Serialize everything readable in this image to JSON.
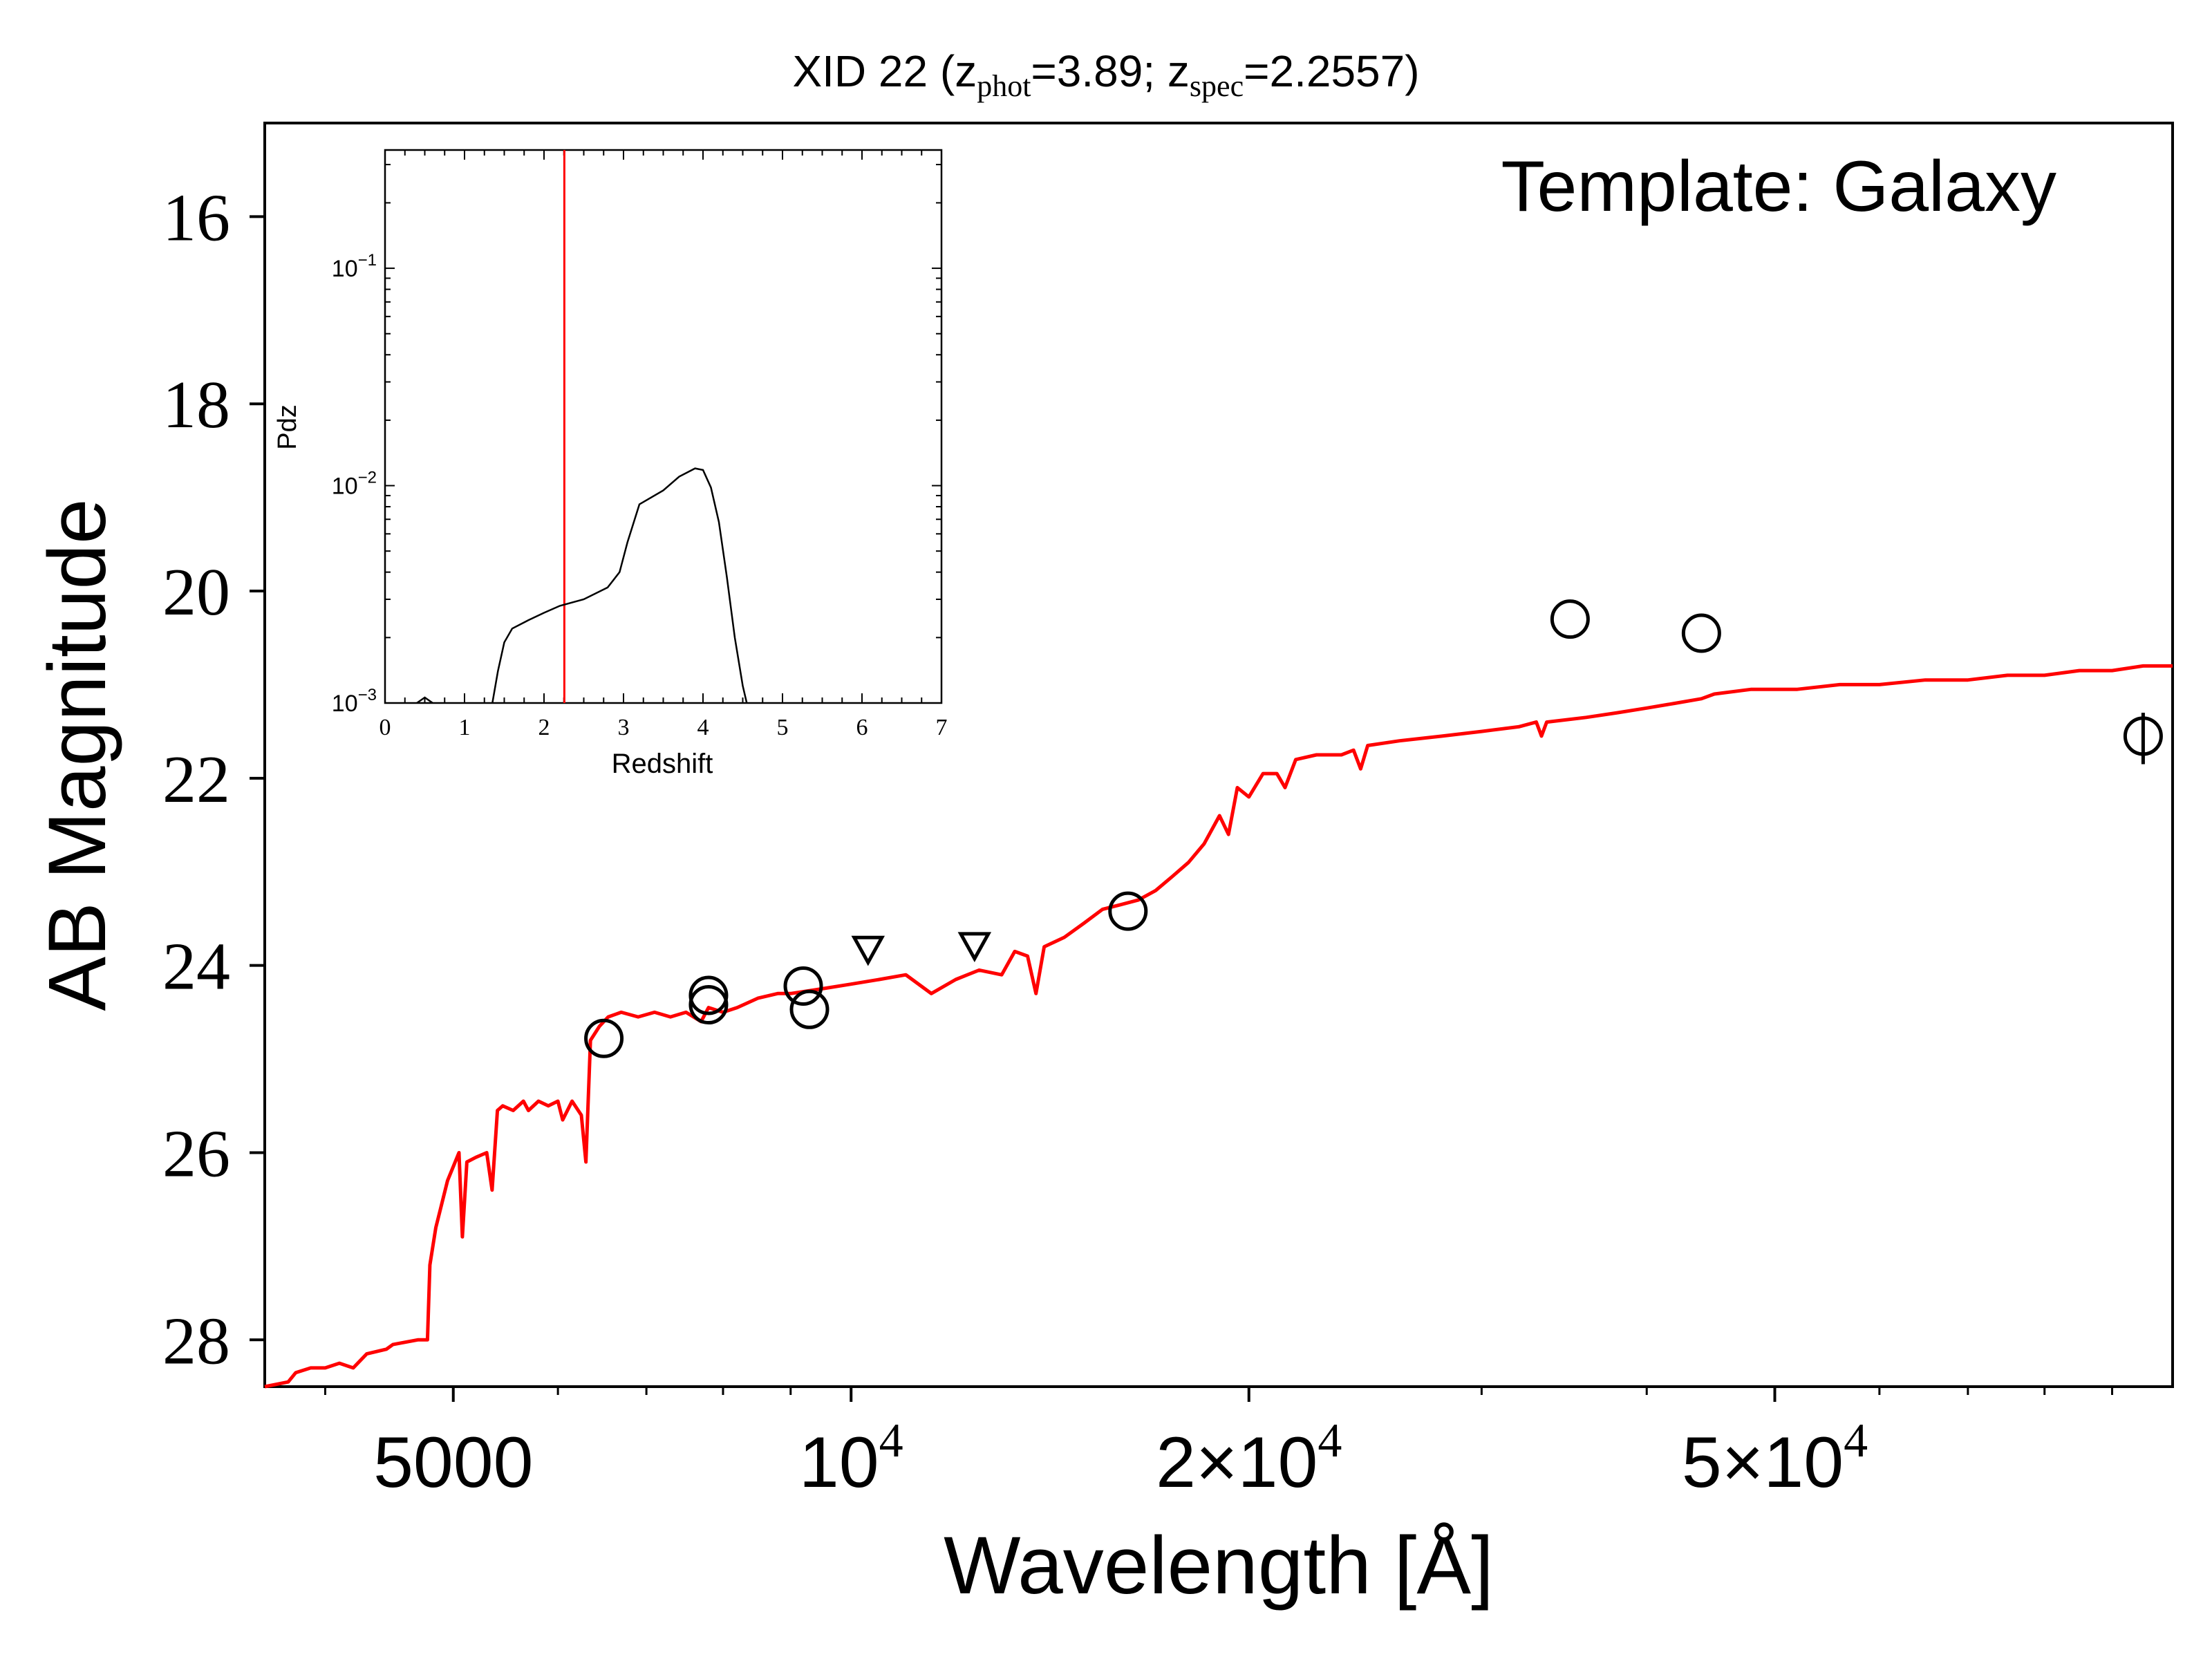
{
  "chart_data": [
    {
      "type": "line",
      "title": {
        "prefix": "XID 22 (z",
        "sub1": "phot",
        "mid": "=3.89; z",
        "sub2": "spec",
        "suffix": "=2.2557)"
      },
      "annotation": "Template: Galaxy",
      "xlabel": "Wavelength [Å]",
      "ylabel": "AB Magnitude",
      "x_scale": "log",
      "y_inverted": true,
      "xlim": [
        3600,
        100000
      ],
      "ylim": [
        28.5,
        15.0
      ],
      "xticks": [
        {
          "value": 5000,
          "label": "5000"
        },
        {
          "value": 10000,
          "label": "10",
          "sup": "4"
        },
        {
          "value": 20000,
          "label": "2×10",
          "sup": "4"
        },
        {
          "value": 50000,
          "label": "5×10",
          "sup": "4"
        }
      ],
      "yticks": [
        {
          "value": 16,
          "label": "16"
        },
        {
          "value": 18,
          "label": "18"
        },
        {
          "value": 20,
          "label": "20"
        },
        {
          "value": 22,
          "label": "22"
        },
        {
          "value": 24,
          "label": "24"
        },
        {
          "value": 26,
          "label": "26"
        },
        {
          "value": 28,
          "label": "28"
        }
      ],
      "series": [
        {
          "kind": "template-spectrum",
          "color": "#ff0000",
          "points": [
            [
              3600,
              28.5
            ],
            [
              3750,
              28.45
            ],
            [
              3800,
              28.35
            ],
            [
              3900,
              28.3
            ],
            [
              4000,
              28.3
            ],
            [
              4100,
              28.25
            ],
            [
              4200,
              28.3
            ],
            [
              4300,
              28.15
            ],
            [
              4450,
              28.1
            ],
            [
              4500,
              28.05
            ],
            [
              4700,
              28.0
            ],
            [
              4780,
              28.0
            ],
            [
              4800,
              27.2
            ],
            [
              4850,
              26.8
            ],
            [
              4950,
              26.3
            ],
            [
              5050,
              26.0
            ],
            [
              5080,
              26.9
            ],
            [
              5120,
              26.1
            ],
            [
              5200,
              26.05
            ],
            [
              5300,
              26.0
            ],
            [
              5350,
              26.4
            ],
            [
              5400,
              25.55
            ],
            [
              5450,
              25.5
            ],
            [
              5550,
              25.55
            ],
            [
              5650,
              25.45
            ],
            [
              5700,
              25.55
            ],
            [
              5800,
              25.45
            ],
            [
              5900,
              25.5
            ],
            [
              6000,
              25.45
            ],
            [
              6050,
              25.65
            ],
            [
              6150,
              25.45
            ],
            [
              6250,
              25.6
            ],
            [
              6300,
              26.1
            ],
            [
              6350,
              24.8
            ],
            [
              6450,
              24.65
            ],
            [
              6550,
              24.55
            ],
            [
              6700,
              24.5
            ],
            [
              6900,
              24.55
            ],
            [
              7100,
              24.5
            ],
            [
              7300,
              24.55
            ],
            [
              7500,
              24.5
            ],
            [
              7700,
              24.6
            ],
            [
              7800,
              24.45
            ],
            [
              8000,
              24.5
            ],
            [
              8200,
              24.45
            ],
            [
              8500,
              24.35
            ],
            [
              8800,
              24.3
            ],
            [
              9000,
              24.3
            ],
            [
              9500,
              24.25
            ],
            [
              10000,
              24.2
            ],
            [
              10500,
              24.15
            ],
            [
              11000,
              24.1
            ],
            [
              11500,
              24.3
            ],
            [
              12000,
              24.15
            ],
            [
              12500,
              24.05
            ],
            [
              13000,
              24.1
            ],
            [
              13300,
              23.85
            ],
            [
              13600,
              23.9
            ],
            [
              13800,
              24.3
            ],
            [
              14000,
              23.8
            ],
            [
              14500,
              23.7
            ],
            [
              15000,
              23.55
            ],
            [
              15500,
              23.4
            ],
            [
              16000,
              23.35
            ],
            [
              16500,
              23.3
            ],
            [
              17000,
              23.2
            ],
            [
              17500,
              23.05
            ],
            [
              18000,
              22.9
            ],
            [
              18500,
              22.7
            ],
            [
              19000,
              22.4
            ],
            [
              19300,
              22.6
            ],
            [
              19600,
              22.1
            ],
            [
              20000,
              22.2
            ],
            [
              20500,
              21.95
            ],
            [
              21000,
              21.95
            ],
            [
              21300,
              22.1
            ],
            [
              21700,
              21.8
            ],
            [
              22500,
              21.75
            ],
            [
              23500,
              21.75
            ],
            [
              24000,
              21.7
            ],
            [
              24300,
              21.9
            ],
            [
              24600,
              21.65
            ],
            [
              26000,
              21.6
            ],
            [
              28000,
              21.55
            ],
            [
              30000,
              21.5
            ],
            [
              32000,
              21.45
            ],
            [
              33000,
              21.4
            ],
            [
              33300,
              21.55
            ],
            [
              33600,
              21.4
            ],
            [
              36000,
              21.35
            ],
            [
              38000,
              21.3
            ],
            [
              40000,
              21.25
            ],
            [
              42000,
              21.2
            ],
            [
              44000,
              21.15
            ],
            [
              45000,
              21.1
            ],
            [
              48000,
              21.05
            ],
            [
              52000,
              21.05
            ],
            [
              56000,
              21.0
            ],
            [
              60000,
              21.0
            ],
            [
              65000,
              20.95
            ],
            [
              70000,
              20.95
            ],
            [
              75000,
              20.9
            ],
            [
              80000,
              20.9
            ],
            [
              85000,
              20.85
            ],
            [
              90000,
              20.85
            ],
            [
              95000,
              20.8
            ],
            [
              100000,
              20.8
            ]
          ]
        },
        {
          "kind": "detections",
          "marker": "circle",
          "points": [
            [
              6500,
              24.78
            ],
            [
              7800,
              24.32
            ],
            [
              7800,
              24.42
            ],
            [
              9200,
              24.22
            ],
            [
              9300,
              24.47
            ],
            [
              16200,
              23.42
            ],
            [
              35000,
              20.3
            ],
            [
              44000,
              20.45
            ],
            [
              95000,
              21.55
            ]
          ]
        },
        {
          "kind": "upper-limits",
          "marker": "triangle-down",
          "points": [
            [
              10300,
              23.82
            ],
            [
              12400,
              23.78
            ]
          ]
        }
      ],
      "error_bars": [
        {
          "x": 95000,
          "y_low": 21.3,
          "y_high": 21.85
        }
      ]
    },
    {
      "type": "line",
      "role": "inset",
      "xlabel": "Redshift",
      "ylabel": "Pdz",
      "y_scale": "log",
      "xlim": [
        0,
        7
      ],
      "ylim": [
        0.001,
        0.35
      ],
      "xticks": [
        {
          "value": 0,
          "label": "0"
        },
        {
          "value": 1,
          "label": "1"
        },
        {
          "value": 2,
          "label": "2"
        },
        {
          "value": 3,
          "label": "3"
        },
        {
          "value": 4,
          "label": "4"
        },
        {
          "value": 5,
          "label": "5"
        },
        {
          "value": 6,
          "label": "6"
        },
        {
          "value": 7,
          "label": "7"
        }
      ],
      "yticks": [
        {
          "value": 0.001,
          "base": "10",
          "sup": "−3"
        },
        {
          "value": 0.01,
          "base": "10",
          "sup": "−2"
        },
        {
          "value": 0.1,
          "base": "10",
          "sup": "−1"
        }
      ],
      "series": [
        {
          "kind": "pdz-main",
          "color": "#000000",
          "points": [
            [
              1.35,
              0.001
            ],
            [
              1.42,
              0.0014
            ],
            [
              1.5,
              0.0019
            ],
            [
              1.6,
              0.0022
            ],
            [
              1.8,
              0.0024
            ],
            [
              2.0,
              0.0026
            ],
            [
              2.2,
              0.0028
            ],
            [
              2.5,
              0.003
            ],
            [
              2.8,
              0.0034
            ],
            [
              2.95,
              0.004
            ],
            [
              3.05,
              0.0055
            ],
            [
              3.2,
              0.0082
            ],
            [
              3.5,
              0.0095
            ],
            [
              3.7,
              0.011
            ],
            [
              3.9,
              0.012
            ],
            [
              4.0,
              0.0118
            ],
            [
              4.1,
              0.0098
            ],
            [
              4.2,
              0.0068
            ],
            [
              4.3,
              0.0038
            ],
            [
              4.4,
              0.002
            ],
            [
              4.5,
              0.0012
            ],
            [
              4.55,
              0.001
            ]
          ]
        },
        {
          "kind": "pdz-blip",
          "color": "#000000",
          "points": [
            [
              0.32,
              0.00092
            ],
            [
              0.4,
              0.001
            ],
            [
              0.5,
              0.00106
            ],
            [
              0.6,
              0.001
            ],
            [
              0.68,
              0.00092
            ]
          ]
        }
      ],
      "reference_line": {
        "x": 2.2557,
        "color": "#ff0000"
      }
    }
  ]
}
